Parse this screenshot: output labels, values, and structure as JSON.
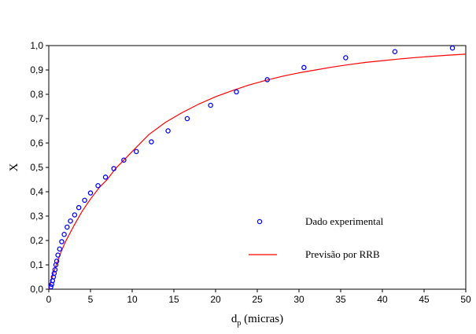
{
  "chart_data": {
    "type": "scatter",
    "xlabel": "d",
    "xlabel_sub": "p",
    "xlabel_rest": " (micras)",
    "ylabel": "X",
    "xlim": [
      0,
      50
    ],
    "ylim": [
      0,
      1.0
    ],
    "xticks": [
      "0",
      "5",
      "10",
      "15",
      "20",
      "25",
      "30",
      "35",
      "40",
      "45",
      "50"
    ],
    "yticks": [
      "0,0",
      "0,1",
      "0,2",
      "0,3",
      "0,4",
      "0,5",
      "0,6",
      "0,7",
      "0,8",
      "0,9",
      "1,0"
    ],
    "grid": false,
    "legend_position": "bottom-right",
    "series": [
      {
        "name": "Dado experimental",
        "kind": "scatter",
        "color": "#0000ff",
        "x": [
          0.25,
          0.35,
          0.45,
          0.55,
          0.65,
          0.75,
          0.85,
          0.95,
          1.1,
          1.3,
          1.55,
          1.85,
          2.2,
          2.6,
          3.1,
          3.6,
          4.3,
          5.0,
          5.9,
          6.8,
          7.8,
          9.0,
          10.5,
          12.3,
          14.3,
          16.6,
          19.4,
          22.5,
          26.2,
          30.6,
          35.6,
          41.5,
          48.4
        ],
        "y": [
          0.01,
          0.02,
          0.035,
          0.05,
          0.065,
          0.08,
          0.1,
          0.115,
          0.14,
          0.165,
          0.195,
          0.225,
          0.255,
          0.28,
          0.305,
          0.335,
          0.365,
          0.395,
          0.425,
          0.46,
          0.495,
          0.53,
          0.565,
          0.605,
          0.65,
          0.7,
          0.755,
          0.81,
          0.86,
          0.91,
          0.95,
          0.975,
          0.99
        ]
      },
      {
        "name": "Previsão por RRB",
        "kind": "line",
        "color": "#ff0000",
        "x": [
          0,
          0.5,
          1,
          1.5,
          2,
          3,
          4,
          5,
          6,
          7,
          8,
          9,
          10,
          12,
          14,
          16,
          18,
          20,
          22,
          24,
          26,
          28,
          30,
          32,
          34,
          36,
          38,
          40,
          42,
          44,
          46,
          48,
          50
        ],
        "y": [
          0,
          0.06,
          0.11,
          0.155,
          0.195,
          0.26,
          0.32,
          0.37,
          0.415,
          0.45,
          0.495,
          0.53,
          0.565,
          0.635,
          0.685,
          0.725,
          0.76,
          0.79,
          0.815,
          0.838,
          0.857,
          0.874,
          0.888,
          0.9,
          0.912,
          0.922,
          0.931,
          0.938,
          0.945,
          0.951,
          0.956,
          0.961,
          0.965
        ]
      }
    ]
  }
}
